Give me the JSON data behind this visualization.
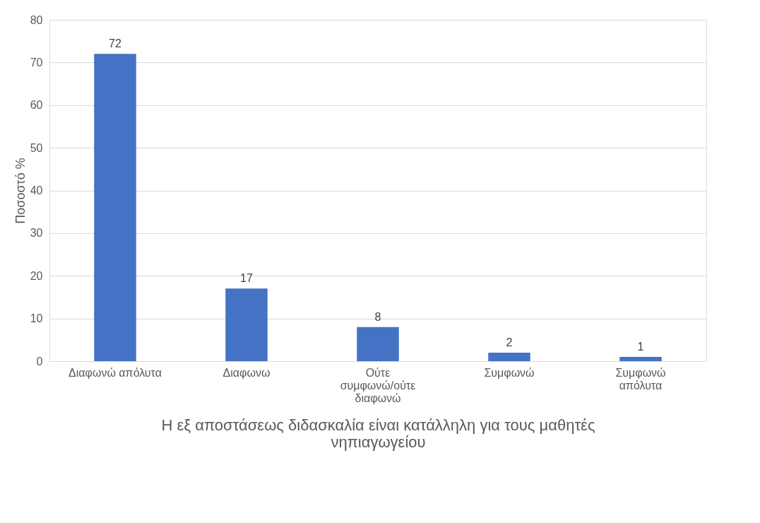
{
  "chart_data": {
    "type": "bar",
    "categories": [
      "Διαφωνώ απόλυτα",
      "Διαφωνω",
      "Ούτε συμφωνώ/ούτε διαφωνώ",
      "Συμφωνώ",
      "Συμφωνώ απόλυτα"
    ],
    "values": [
      72,
      17,
      8,
      2,
      1
    ],
    "color": "#4472c4",
    "xlabel": "Η εξ αποστάσεως διδασκαλία είναι κατάλληλη για τους μαθητές νηπιαγωγείου",
    "ylabel": "Ποσοστό %",
    "ylim": [
      0,
      80
    ],
    "yticks": [
      0,
      10,
      20,
      30,
      40,
      50,
      60,
      70,
      80
    ],
    "grid": "y",
    "data_labels": true
  }
}
